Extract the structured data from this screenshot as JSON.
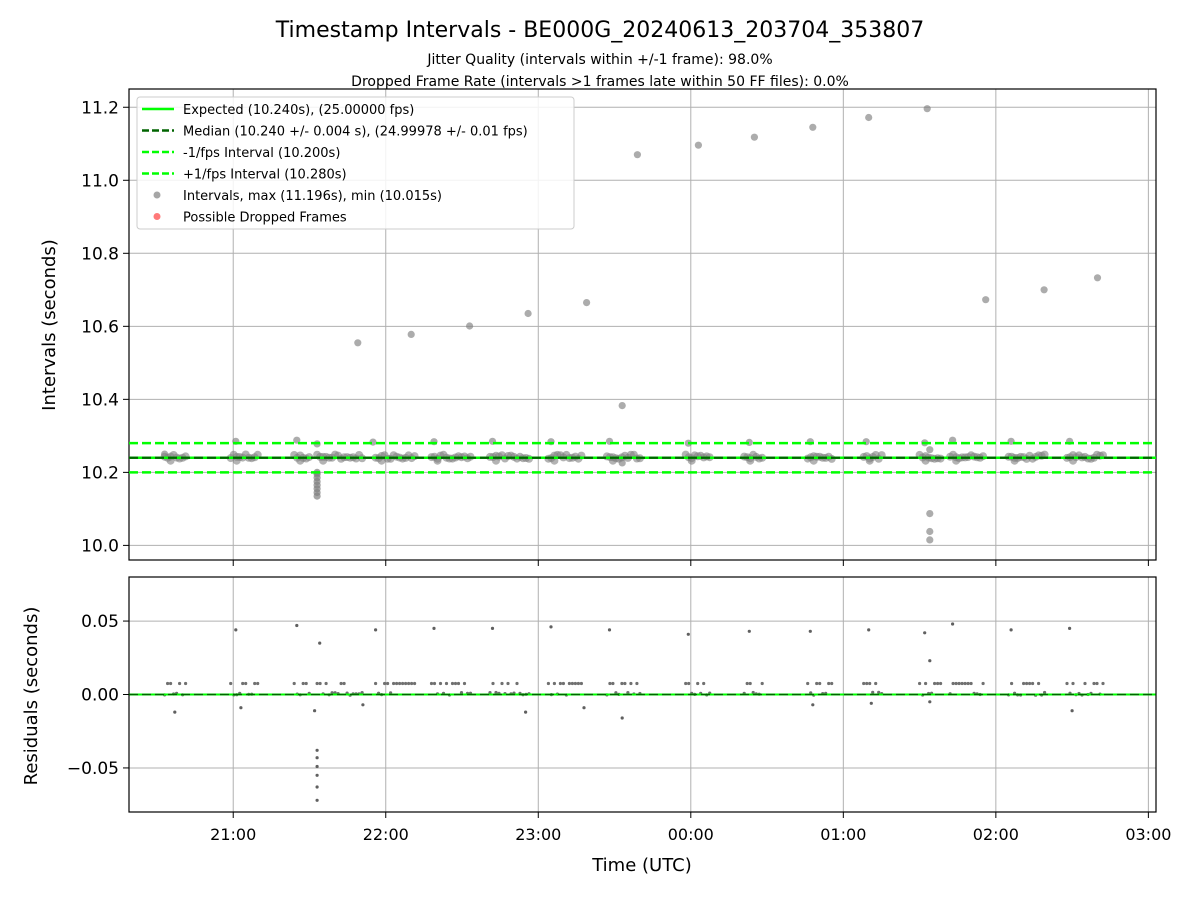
{
  "title": "Timestamp Intervals - BE000G_20240613_203704_353807",
  "subtitle1": "Jitter Quality (intervals within +/-1 frame): 98.0%",
  "subtitle2": "Dropped Frame Rate (intervals >1 frames late within 50 FF files): 0.0%",
  "colors": {
    "expected": "#00ff00",
    "median": "#006400",
    "interval_band": "#00ff00",
    "points": "#808080",
    "dropped": "#ff4040",
    "grid": "#b0b0b0"
  },
  "chart_data": [
    {
      "type": "scatter",
      "panel": "intervals",
      "ylabel": "Intervals (seconds)",
      "ylim": [
        9.96,
        11.25
      ],
      "yticks": [
        10.0,
        10.2,
        10.4,
        10.6,
        10.8,
        11.0,
        11.2
      ],
      "ytick_labels": [
        "10.0",
        "10.2",
        "10.4",
        "10.6",
        "10.8",
        "11.0",
        "11.2"
      ],
      "xlim": [
        "20:19",
        "03:03"
      ],
      "grid": true,
      "legend_placement": "top-left",
      "legend": [
        {
          "label": "Expected (10.240s), (25.00000 fps)",
          "style": "solid",
          "color": "#00ff00"
        },
        {
          "label": "Median (10.240 +/- 0.004 s), (24.99978 +/- 0.01 fps)",
          "style": "dashed",
          "color": "#006400"
        },
        {
          "label": "-1/fps Interval (10.200s)",
          "style": "dashed",
          "color": "#00ff00"
        },
        {
          "label": "+1/fps Interval (10.280s)",
          "style": "dashed",
          "color": "#00ff00"
        },
        {
          "label": "Intervals, max (11.196s), min (10.015s)",
          "style": "dot",
          "color": "#808080"
        },
        {
          "label": "Possible Dropped Frames",
          "style": "dot",
          "color": "#ff4040"
        }
      ],
      "hlines": {
        "expected": 10.24,
        "median": 10.24,
        "minus_one": 10.2,
        "plus_one": 10.28
      },
      "outliers": [
        {
          "t": "20:33",
          "y": 10.25
        },
        {
          "t": "21:01",
          "y": 10.285
        },
        {
          "t": "21:25",
          "y": 10.288
        },
        {
          "t": "21:33",
          "y": 10.278
        },
        {
          "t": "21:49",
          "y": 10.555
        },
        {
          "t": "21:55",
          "y": 10.283
        },
        {
          "t": "22:10",
          "y": 10.578
        },
        {
          "t": "22:19",
          "y": 10.284
        },
        {
          "t": "22:33",
          "y": 10.601
        },
        {
          "t": "22:42",
          "y": 10.285
        },
        {
          "t": "22:56",
          "y": 10.635
        },
        {
          "t": "23:05",
          "y": 10.284
        },
        {
          "t": "23:19",
          "y": 10.665
        },
        {
          "t": "23:28",
          "y": 10.285
        },
        {
          "t": "23:33",
          "y": 10.383
        },
        {
          "t": "23:33",
          "y": 10.226
        },
        {
          "t": "23:39",
          "y": 11.07
        },
        {
          "t": "23:59",
          "y": 10.28
        },
        {
          "t": "00:03",
          "y": 11.096
        },
        {
          "t": "00:23",
          "y": 10.282
        },
        {
          "t": "00:25",
          "y": 11.118
        },
        {
          "t": "00:47",
          "y": 10.284
        },
        {
          "t": "00:48",
          "y": 11.145
        },
        {
          "t": "01:09",
          "y": 10.284
        },
        {
          "t": "01:10",
          "y": 11.172
        },
        {
          "t": "01:32",
          "y": 10.281
        },
        {
          "t": "01:33",
          "y": 11.196
        },
        {
          "t": "01:34",
          "y": 10.087
        },
        {
          "t": "01:34",
          "y": 10.038
        },
        {
          "t": "01:34",
          "y": 10.015
        },
        {
          "t": "01:34",
          "y": 10.262
        },
        {
          "t": "01:43",
          "y": 10.288
        },
        {
          "t": "01:56",
          "y": 10.673
        },
        {
          "t": "02:06",
          "y": 10.285
        },
        {
          "t": "02:19",
          "y": 10.7
        },
        {
          "t": "02:29",
          "y": 10.285
        },
        {
          "t": "02:40",
          "y": 10.733
        }
      ],
      "dip": {
        "t": "21:33",
        "values": [
          10.135,
          10.145,
          10.155,
          10.165,
          10.175,
          10.185,
          10.195,
          10.2
        ]
      },
      "dense_segments": [
        {
          "from": "20:33",
          "to": "20:42"
        },
        {
          "from": "20:59",
          "to": "21:10"
        },
        {
          "from": "21:24",
          "to": "21:30"
        },
        {
          "from": "21:33",
          "to": "21:51"
        },
        {
          "from": "21:56",
          "to": "22:12"
        },
        {
          "from": "22:18",
          "to": "22:34"
        },
        {
          "from": "22:41",
          "to": "22:57"
        },
        {
          "from": "23:04",
          "to": "23:18"
        },
        {
          "from": "23:27",
          "to": "23:40"
        },
        {
          "from": "23:58",
          "to": "00:08"
        },
        {
          "from": "00:21",
          "to": "00:29"
        },
        {
          "from": "00:46",
          "to": "00:56"
        },
        {
          "from": "01:08",
          "to": "01:16"
        },
        {
          "from": "01:30",
          "to": "01:39"
        },
        {
          "from": "01:42",
          "to": "01:56"
        },
        {
          "from": "02:05",
          "to": "02:20"
        },
        {
          "from": "02:28",
          "to": "02:43"
        }
      ]
    },
    {
      "type": "scatter",
      "panel": "residuals",
      "ylabel": "Residuals (seconds)",
      "xlabel": "Time (UTC)",
      "ylim": [
        -0.08,
        0.08
      ],
      "yticks": [
        -0.05,
        0.0,
        0.05
      ],
      "ytick_labels": [
        "−0.05",
        "0.00",
        "0.05"
      ],
      "xlim": [
        "20:19",
        "03:03"
      ],
      "xticks": [
        "21:00",
        "22:00",
        "23:00",
        "00:00",
        "01:00",
        "02:00",
        "03:00"
      ],
      "grid": true,
      "zero_line": 0.0,
      "outliers": [
        {
          "t": "21:01",
          "y": 0.044
        },
        {
          "t": "21:25",
          "y": 0.047
        },
        {
          "t": "21:34",
          "y": 0.035
        },
        {
          "t": "21:56",
          "y": 0.044
        },
        {
          "t": "22:19",
          "y": 0.045
        },
        {
          "t": "22:42",
          "y": 0.045
        },
        {
          "t": "23:05",
          "y": 0.046
        },
        {
          "t": "23:28",
          "y": 0.044
        },
        {
          "t": "23:59",
          "y": 0.041
        },
        {
          "t": "00:23",
          "y": 0.043
        },
        {
          "t": "00:47",
          "y": 0.043
        },
        {
          "t": "01:10",
          "y": 0.044
        },
        {
          "t": "01:32",
          "y": 0.042
        },
        {
          "t": "01:34",
          "y": 0.023
        },
        {
          "t": "01:43",
          "y": 0.048
        },
        {
          "t": "02:06",
          "y": 0.044
        },
        {
          "t": "02:29",
          "y": 0.045
        },
        {
          "t": "20:37",
          "y": -0.012
        },
        {
          "t": "21:03",
          "y": -0.009
        },
        {
          "t": "21:32",
          "y": -0.011
        },
        {
          "t": "21:51",
          "y": -0.007
        },
        {
          "t": "22:55",
          "y": -0.012
        },
        {
          "t": "23:18",
          "y": -0.009
        },
        {
          "t": "23:33",
          "y": -0.016
        },
        {
          "t": "00:48",
          "y": -0.007
        },
        {
          "t": "01:11",
          "y": -0.006
        },
        {
          "t": "01:34",
          "y": -0.005
        },
        {
          "t": "02:30",
          "y": -0.011
        }
      ],
      "dip": {
        "t": "21:33",
        "values": [
          -0.038,
          -0.043,
          -0.049,
          -0.055,
          -0.063,
          -0.072
        ]
      }
    }
  ]
}
